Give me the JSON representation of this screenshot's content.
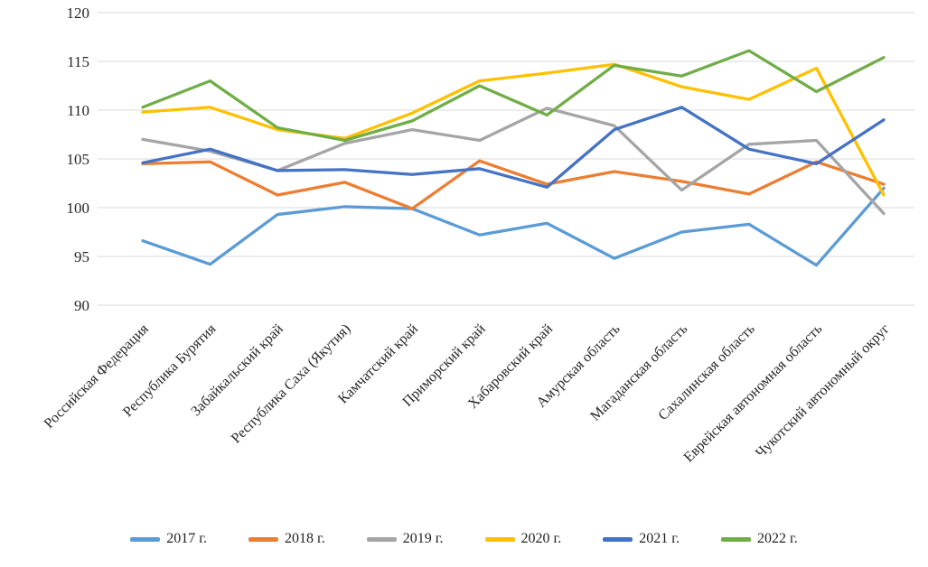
{
  "chart_data": {
    "type": "line",
    "title": "",
    "xlabel": "",
    "ylabel": "",
    "ylim": [
      90,
      120
    ],
    "yticks": [
      90,
      95,
      100,
      105,
      110,
      115,
      120
    ],
    "grid": "horizontal",
    "gridline_color": "#d9d9d9",
    "axis_text_color": "#262626",
    "legend_position": "bottom",
    "categories": [
      "Российская Федерация",
      "Республика Бурятия",
      "Забайкальский край",
      "Республика Саха (Якутия)",
      "Камчатский край",
      "Приморский край",
      "Хабаровский край",
      "Амурская область",
      "Магаданская область",
      "Сахалинская область",
      "Еврейская автономная область",
      "Чукотский автономный округ"
    ],
    "series": [
      {
        "name": "2017 г.",
        "color": "#5B9BD5",
        "values": [
          96.6,
          94.2,
          99.3,
          100.1,
          99.9,
          97.2,
          98.4,
          94.8,
          97.5,
          98.3,
          94.1,
          102.0
        ]
      },
      {
        "name": "2018 г.",
        "color": "#ED7D31",
        "values": [
          104.5,
          104.7,
          101.3,
          102.6,
          99.9,
          104.8,
          102.4,
          103.7,
          102.7,
          101.4,
          104.7,
          102.4
        ]
      },
      {
        "name": "2019 г.",
        "color": "#A5A5A5",
        "values": [
          107.0,
          105.8,
          103.8,
          106.6,
          108.0,
          106.9,
          110.2,
          108.4,
          101.8,
          106.5,
          106.9,
          99.4
        ]
      },
      {
        "name": "2020 г.",
        "color": "#FFC000",
        "values": [
          109.8,
          110.3,
          108.0,
          107.1,
          109.7,
          113.0,
          113.8,
          114.7,
          112.4,
          111.1,
          114.3,
          101.3
        ]
      },
      {
        "name": "2021 г.",
        "color": "#4472C4",
        "values": [
          104.6,
          106.0,
          103.8,
          103.9,
          103.4,
          104.0,
          102.1,
          108.0,
          110.3,
          106.0,
          104.5,
          109.0
        ]
      },
      {
        "name": "2022 г.",
        "color": "#70AD47",
        "values": [
          110.3,
          113.0,
          108.2,
          106.9,
          108.9,
          112.5,
          109.5,
          114.6,
          113.5,
          116.1,
          111.9,
          115.4
        ]
      }
    ]
  }
}
